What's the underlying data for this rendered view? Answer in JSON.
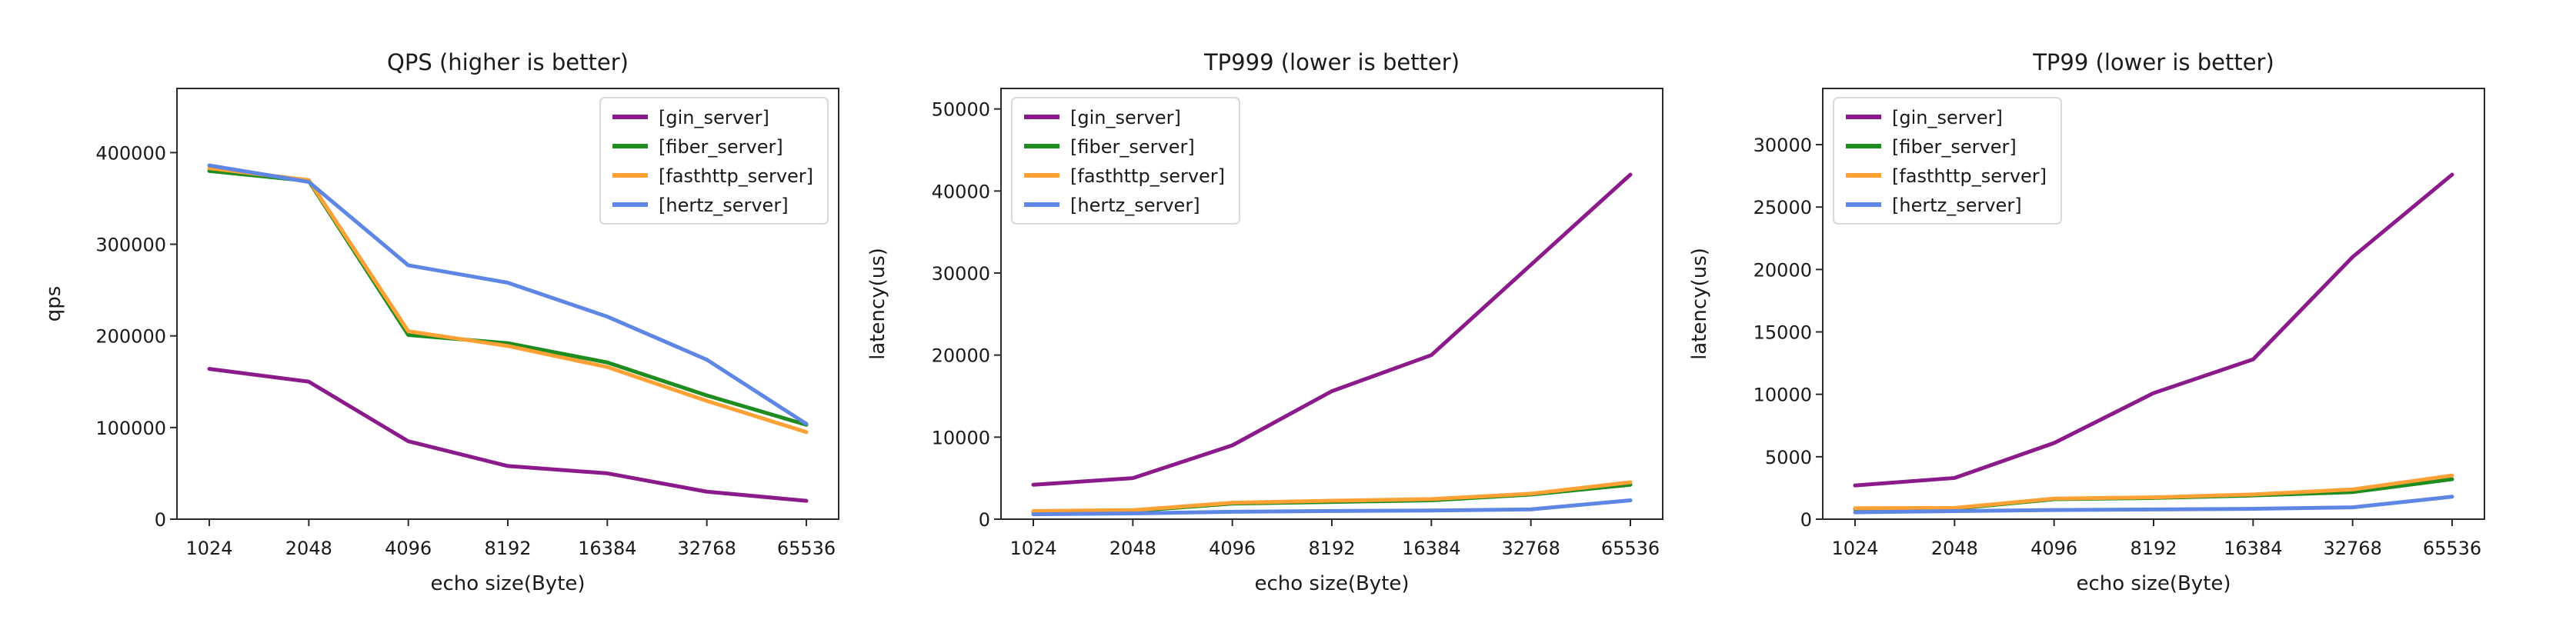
{
  "figure": {
    "background": "#ffffff",
    "description": "Go HTTP framework echo benchmark: three line charts comparing gin, fiber, fasthttp and hertz servers"
  },
  "chart_data": [
    {
      "type": "line",
      "id": "qps",
      "title": "QPS (higher is better)",
      "xlabel": "echo size(Byte)",
      "ylabel": "qps",
      "categories": [
        "1024",
        "2048",
        "4096",
        "8192",
        "16384",
        "32768",
        "65536"
      ],
      "x_axis_type": "categorical",
      "yticks": [
        0,
        100000,
        200000,
        300000,
        400000
      ],
      "ylim": [
        0,
        470000
      ],
      "grid": false,
      "legend_position": "top-right",
      "series": [
        {
          "name": "[gin_server]",
          "color": "#8b1b8b",
          "values": [
            164000,
            150000,
            85000,
            58000,
            50000,
            30000,
            20000
          ]
        },
        {
          "name": "[fiber_server]",
          "color": "#1e8c1e",
          "values": [
            380000,
            369000,
            201000,
            192000,
            171000,
            135000,
            103000
          ]
        },
        {
          "name": "[fasthttp_server]",
          "color": "#ffa135",
          "values": [
            383000,
            370000,
            205000,
            189000,
            166000,
            129000,
            95000
          ]
        },
        {
          "name": "[hertz_server]",
          "color": "#5e86e5",
          "values": [
            386000,
            368000,
            277000,
            258000,
            221000,
            174000,
            104000
          ]
        }
      ]
    },
    {
      "type": "line",
      "id": "tp999",
      "title": "TP999 (lower is better)",
      "xlabel": "echo size(Byte)",
      "ylabel": "latency(us)",
      "categories": [
        "1024",
        "2048",
        "4096",
        "8192",
        "16384",
        "32768",
        "65536"
      ],
      "x_axis_type": "categorical",
      "yticks": [
        0,
        10000,
        20000,
        30000,
        40000,
        50000
      ],
      "ylim": [
        0,
        52500
      ],
      "grid": false,
      "legend_position": "top-left",
      "series": [
        {
          "name": "[gin_server]",
          "color": "#8b1b8b",
          "values": [
            4200,
            5000,
            9000,
            15600,
            20000,
            31000,
            42000
          ]
        },
        {
          "name": "[fiber_server]",
          "color": "#1e8c1e",
          "values": [
            900,
            1000,
            1900,
            2100,
            2300,
            3000,
            4200
          ]
        },
        {
          "name": "[fasthttp_server]",
          "color": "#ffa135",
          "values": [
            1000,
            1100,
            2000,
            2250,
            2450,
            3100,
            4500
          ]
        },
        {
          "name": "[hertz_server]",
          "color": "#5e86e5",
          "values": [
            600,
            700,
            900,
            1000,
            1050,
            1200,
            2300
          ]
        }
      ]
    },
    {
      "type": "line",
      "id": "tp99",
      "title": "TP99 (lower is better)",
      "xlabel": "echo size(Byte)",
      "ylabel": "latency(us)",
      "categories": [
        "1024",
        "2048",
        "4096",
        "8192",
        "16384",
        "32768",
        "65536"
      ],
      "x_axis_type": "categorical",
      "yticks": [
        0,
        5000,
        10000,
        15000,
        20000,
        25000,
        30000
      ],
      "ylim": [
        0,
        34500
      ],
      "grid": false,
      "legend_position": "top-left",
      "series": [
        {
          "name": "[gin_server]",
          "color": "#8b1b8b",
          "values": [
            2700,
            3300,
            6100,
            10100,
            12800,
            21000,
            27600
          ]
        },
        {
          "name": "[fiber_server]",
          "color": "#1e8c1e",
          "values": [
            800,
            850,
            1600,
            1700,
            1900,
            2170,
            3200
          ]
        },
        {
          "name": "[fasthttp_server]",
          "color": "#ffa135",
          "values": [
            875,
            900,
            1650,
            1750,
            1980,
            2380,
            3500
          ]
        },
        {
          "name": "[hertz_server]",
          "color": "#5e86e5",
          "values": [
            550,
            650,
            730,
            780,
            830,
            950,
            1800
          ]
        }
      ]
    }
  ],
  "style": {
    "spine_color": "#2b2b2b",
    "tick_color": "#2b2b2b",
    "text_color": "#1a1a1a",
    "legend_border_color": "#d9d9d9",
    "legend_background": "#ffffff",
    "line_width": 5
  }
}
